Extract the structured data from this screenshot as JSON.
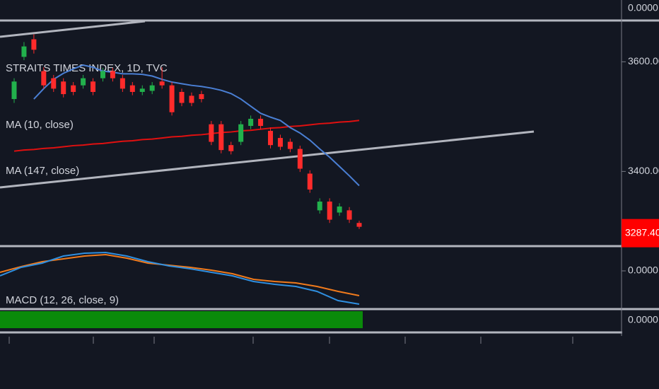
{
  "chart_data": [
    {
      "type": "candlestick",
      "title": "STRAITS TIMES INDEX, 1D, TVC",
      "categories": [
        null,
        null,
        null,
        null,
        null,
        null,
        null,
        null,
        null,
        null,
        null,
        null,
        null,
        null,
        null,
        null,
        null,
        null,
        null,
        null,
        null,
        null,
        null,
        null,
        null,
        null,
        null,
        null,
        null,
        null,
        null,
        null,
        null,
        null,
        null,
        null
      ],
      "open": [
        3532,
        3609,
        3641,
        3583,
        3570,
        3564,
        3557,
        3557,
        3564,
        3570,
        3583,
        3570,
        3557,
        3545,
        3547,
        3564,
        3557,
        3545,
        3538,
        3541,
        3486,
        3486,
        3448,
        3454,
        3483,
        3496,
        3474,
        3461,
        3454,
        3441,
        3396,
        3329,
        3345,
        3325,
        3329,
        3306
      ],
      "high": [
        3570,
        3636,
        3650,
        3590,
        3576,
        3570,
        3563,
        3576,
        3570,
        3589,
        3589,
        3576,
        3563,
        3557,
        3563,
        3590,
        3563,
        3551,
        3544,
        3547,
        3492,
        3492,
        3454,
        3492,
        3502,
        3502,
        3480,
        3467,
        3460,
        3447,
        3402,
        3351,
        3351,
        3342,
        3335,
        3310
      ],
      "low": [
        3525,
        3603,
        3615,
        3551,
        3545,
        3535,
        3539,
        3551,
        3539,
        3564,
        3564,
        3545,
        3539,
        3539,
        3541,
        3551,
        3502,
        3519,
        3519,
        3526,
        3448,
        3433,
        3431,
        3448,
        3477,
        3477,
        3442,
        3439,
        3435,
        3399,
        3361,
        3323,
        3306,
        3319,
        3306,
        3295
      ],
      "close": [
        3564,
        3628,
        3622,
        3557,
        3551,
        3541,
        3545,
        3570,
        3545,
        3583,
        3570,
        3551,
        3545,
        3551,
        3557,
        3557,
        3508,
        3525,
        3525,
        3532,
        3454,
        3439,
        3437,
        3486,
        3496,
        3483,
        3448,
        3445,
        3441,
        3405,
        3367,
        3345,
        3312,
        3336,
        3312,
        3299
      ],
      "up_color": "#22b14c",
      "down_color": "#ff2b2b",
      "series": [
        {
          "name": "MA (10, close)",
          "color": "#4a7fd4",
          "values": [
            null,
            null,
            3532,
            3551,
            3568,
            3579,
            3587,
            3594,
            3590,
            3583,
            3581,
            3578,
            3578,
            3577,
            3574,
            3568,
            3563,
            3560,
            3557,
            3555,
            3552,
            3548,
            3542,
            3532,
            3519,
            3506,
            3499,
            3493,
            3480,
            3470,
            3457,
            3441,
            3426,
            3409,
            3392,
            3374
          ]
        },
        {
          "name": "MA (147, close)",
          "color": "#e01010",
          "values": [
            3437,
            3439,
            3440,
            3442,
            3443,
            3445,
            3447,
            3448,
            3450,
            3451,
            3453,
            3455,
            3456,
            3458,
            3459,
            3461,
            3463,
            3464,
            3466,
            3467,
            3469,
            3471,
            3472,
            3474,
            3475,
            3477,
            3479,
            3480,
            3482,
            3483,
            3485,
            3487,
            3488,
            3490,
            3491,
            3493
          ]
        }
      ],
      "ylim": [
        3265,
        3674
      ],
      "yticks": [
        {
          "value": 3600,
          "label": "3600.00"
        },
        {
          "value": 3400,
          "label": "3400.00"
        }
      ],
      "last_price": {
        "value": 3287.4,
        "label": "3287.40",
        "color": "#ff0000"
      }
    },
    {
      "type": "line",
      "title": "MACD (12, 26, close, 9)",
      "categories": [
        null,
        null,
        null,
        null,
        null,
        null,
        null,
        null,
        null,
        null,
        null,
        null,
        null,
        null,
        null,
        null,
        null,
        null
      ],
      "series": [
        {
          "name": null,
          "color": "#2f8fe0",
          "values": [
            -7,
            5,
            11,
            21,
            25,
            26,
            21,
            13,
            7,
            3,
            -2,
            -7,
            -15,
            -19,
            -22,
            -29,
            -42,
            -47
          ]
        },
        {
          "name": null,
          "color": "#f07a1c",
          "values": [
            -2,
            6,
            13,
            17,
            21,
            23,
            18,
            11,
            8,
            5,
            1,
            -4,
            -12,
            -15,
            -17,
            -22,
            -29,
            -35
          ]
        }
      ],
      "ylim": [
        -52,
        33
      ],
      "yticks": [
        {
          "value": 0,
          "label": "0.0000"
        }
      ]
    }
  ],
  "top_pane_label": "0.0000",
  "bottom_pane_label": "0.0000"
}
